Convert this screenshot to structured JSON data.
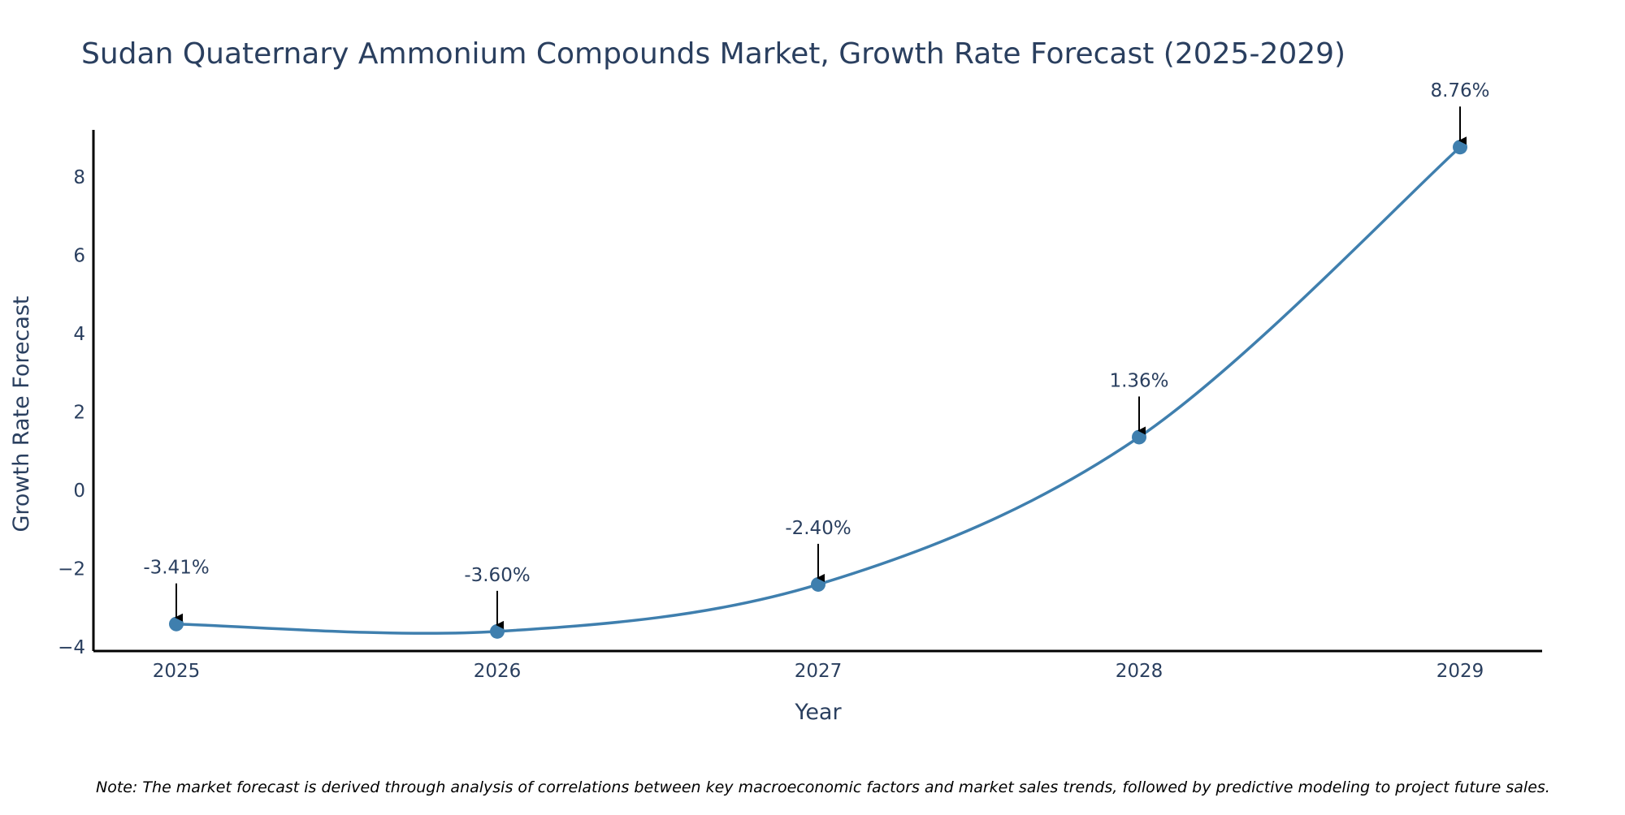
{
  "chart_data": {
    "type": "line",
    "title": "Sudan Quaternary Ammonium Compounds Market, Growth Rate Forecast (2025-2029)",
    "xlabel": "Year",
    "ylabel": "Growth Rate Forecast",
    "categories": [
      "2025",
      "2026",
      "2027",
      "2028",
      "2029"
    ],
    "series": [
      {
        "name": "Growth Rate Forecast",
        "values": [
          -3.41,
          -3.6,
          -2.4,
          1.36,
          8.76
        ]
      }
    ],
    "data_labels": [
      "-3.41%",
      "-3.60%",
      "-2.40%",
      "1.36%",
      "8.76%"
    ],
    "yticks": [
      -4,
      -2,
      0,
      2,
      4,
      6,
      8
    ],
    "ytick_labels": [
      "−4",
      "−2",
      "0",
      "2",
      "4",
      "6",
      "8"
    ],
    "ylim": [
      -4.1,
      9.2
    ],
    "grid": false,
    "legend": "none",
    "note": "Note: The market forecast is derived through analysis of correlations between key macroeconomic factors and market sales trends, followed by predictive modeling to project future sales.",
    "colors": {
      "line": "#3f7fae",
      "marker": "#3f7fae",
      "text": "#2a3f5f",
      "axis": "#000000",
      "arrow": "#000000"
    }
  }
}
